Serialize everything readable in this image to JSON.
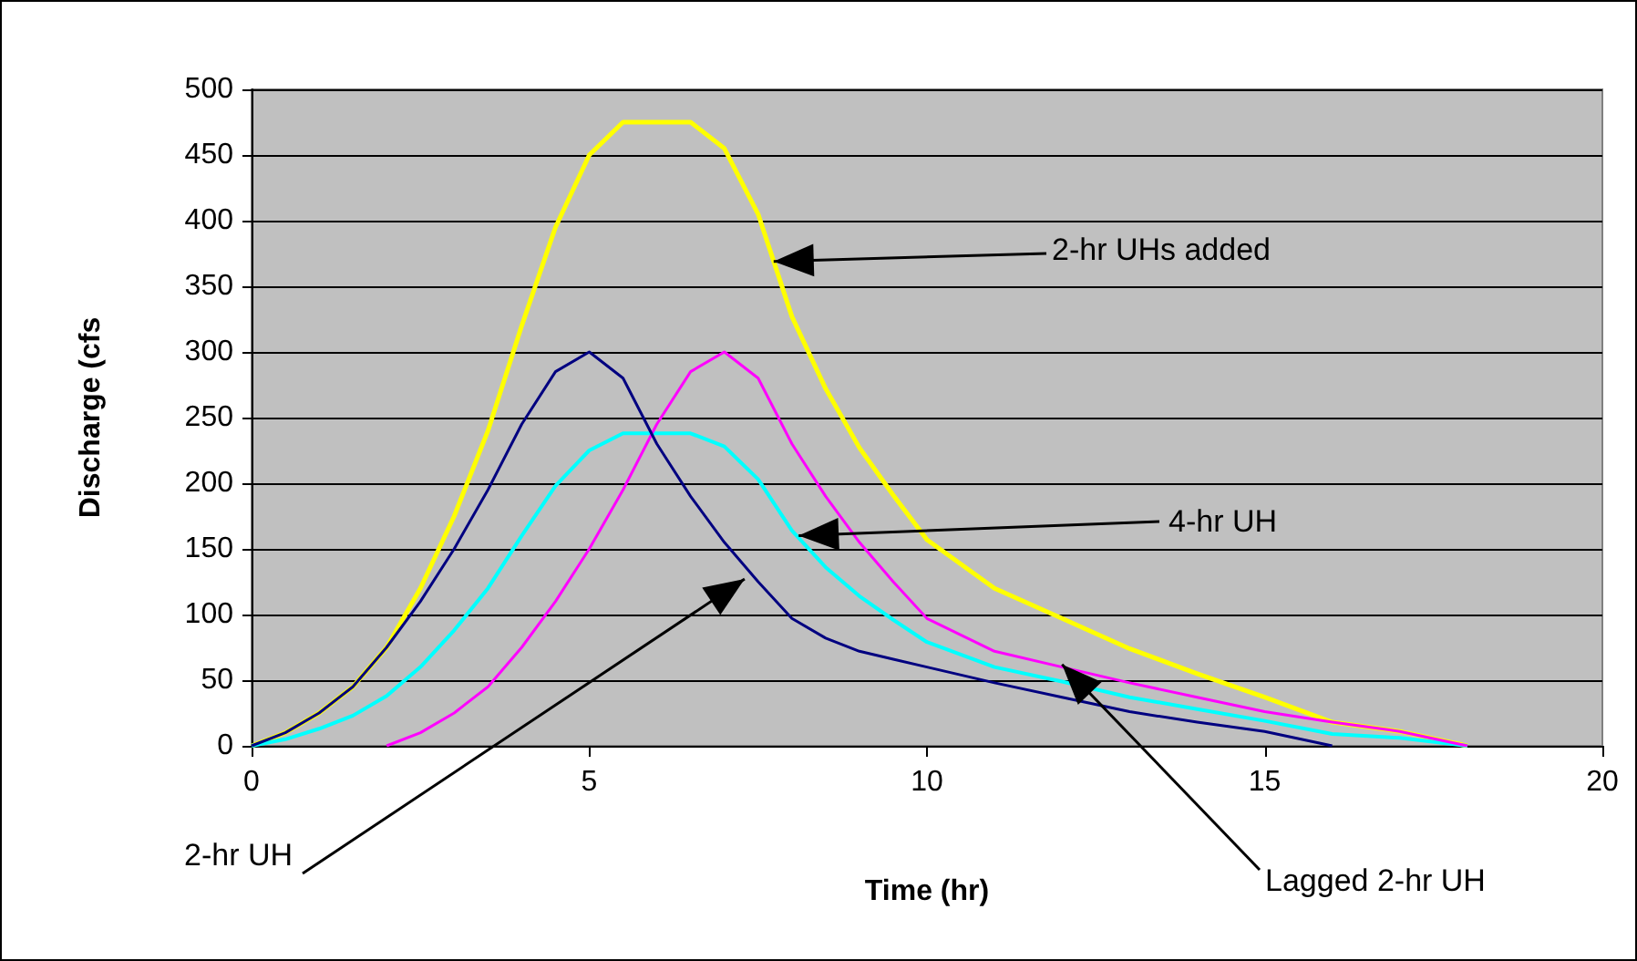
{
  "chart_data": {
    "type": "line",
    "xlabel": "Time (hr)",
    "ylabel": "Discharge (cfs",
    "xlim": [
      0,
      20
    ],
    "xticks": [
      0,
      5,
      10,
      15,
      20
    ],
    "ylim": [
      0,
      500
    ],
    "yticks": [
      0,
      50,
      100,
      150,
      200,
      250,
      300,
      350,
      400,
      450,
      500
    ],
    "grid": "y",
    "series": [
      {
        "color": "#ffff00",
        "x": [
          0,
          0.5,
          1,
          1.5,
          2,
          2.5,
          3,
          3.5,
          4,
          4.5,
          5,
          5.5,
          6,
          6.5,
          7,
          7.5,
          8,
          8.5,
          9,
          9.5,
          10,
          11,
          12,
          13,
          14,
          15,
          16,
          17,
          18
        ],
        "values": [
          0,
          10,
          25,
          45,
          75,
          120,
          175,
          240,
          320,
          395,
          450,
          475,
          475,
          475,
          455,
          405,
          327,
          272,
          227,
          191,
          157,
          120,
          97,
          74,
          55,
          37,
          18,
          11,
          0
        ]
      },
      {
        "color": "#00ffff",
        "x": [
          0,
          0.5,
          1,
          1.5,
          2,
          2.5,
          3,
          3.5,
          4,
          4.5,
          5,
          5.5,
          6,
          6.5,
          7,
          7.5,
          8,
          8.5,
          9,
          9.5,
          10,
          11,
          12,
          13,
          14,
          15,
          16,
          17,
          18
        ],
        "values": [
          0,
          5,
          13,
          23,
          38,
          60,
          88,
          120,
          160,
          198,
          225,
          238,
          238,
          238,
          228,
          203,
          164,
          136,
          114,
          96,
          79,
          60,
          49,
          37,
          28,
          19,
          9,
          6,
          0
        ]
      },
      {
        "color": "#ff00ff",
        "x": [
          2,
          2.5,
          3,
          3.5,
          4,
          4.5,
          5,
          5.5,
          6,
          6.5,
          7,
          7.5,
          8,
          8.5,
          9,
          9.5,
          10,
          11,
          12,
          13,
          14,
          15,
          16,
          17,
          18
        ],
        "values": [
          0,
          10,
          25,
          45,
          75,
          110,
          150,
          195,
          245,
          285,
          300,
          280,
          230,
          190,
          155,
          125,
          97,
          72,
          60,
          48,
          37,
          26,
          18,
          11,
          0
        ]
      },
      {
        "color": "#000080",
        "x": [
          0,
          0.5,
          1,
          1.5,
          2,
          2.5,
          3,
          3.5,
          4,
          4.5,
          5,
          5.5,
          6,
          6.5,
          7,
          7.5,
          8,
          8.5,
          9,
          9.5,
          10,
          11,
          12,
          13,
          14,
          15,
          16
        ],
        "values": [
          0,
          10,
          25,
          45,
          75,
          110,
          150,
          195,
          245,
          285,
          300,
          280,
          230,
          190,
          155,
          125,
          97,
          82,
          72,
          66,
          60,
          48,
          37,
          26,
          18,
          11,
          0
        ]
      }
    ],
    "annotations": [
      {
        "text": "2-hr UHs added",
        "x": 7.73,
        "y": 369
      },
      {
        "text": "4-hr UH",
        "x": 8.1,
        "y": 160
      },
      {
        "text": "2-hr UH",
        "x": 7.3,
        "y": 127
      },
      {
        "text": "Lagged 2-hr UH",
        "x": 12,
        "y": 62
      }
    ]
  }
}
